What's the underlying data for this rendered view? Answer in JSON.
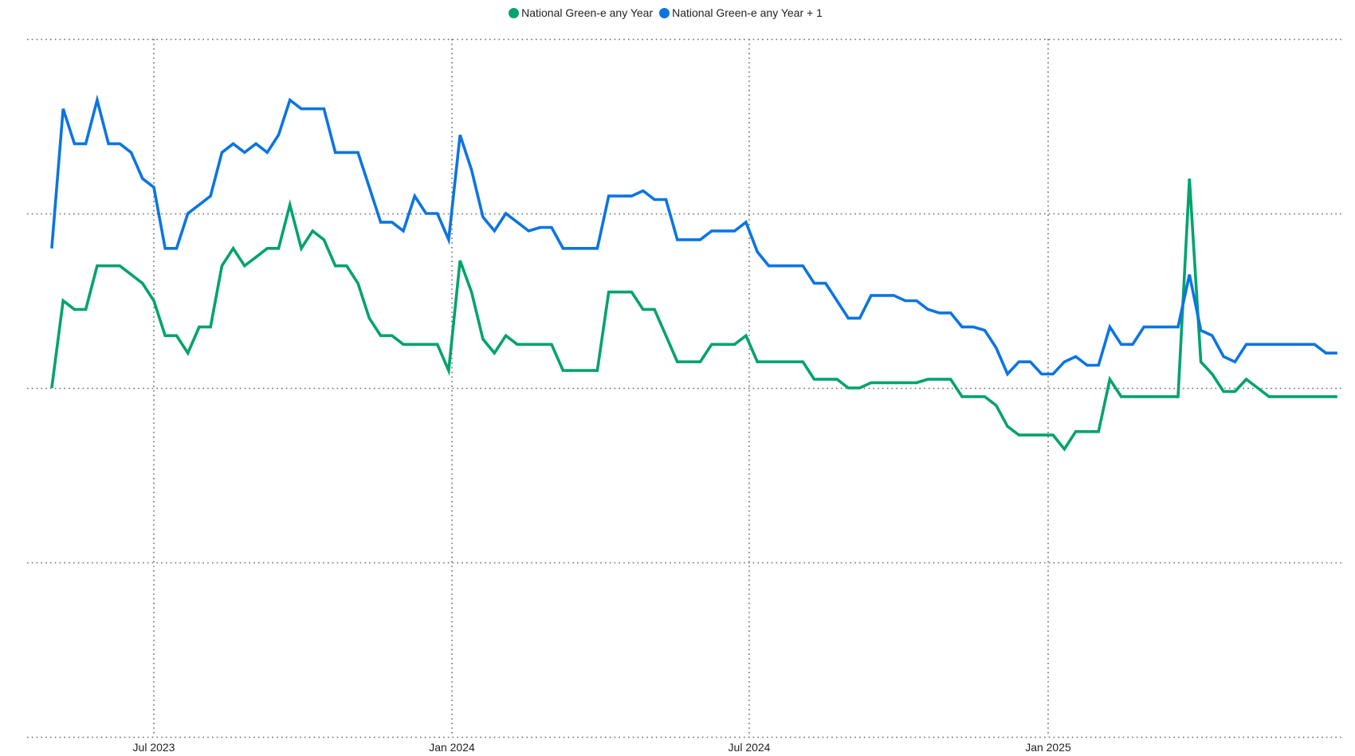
{
  "chart_data": {
    "type": "line",
    "title": "",
    "xlabel": "",
    "ylabel": "",
    "grid": true,
    "legend_position": "top-center",
    "x_ticks": [
      "Jul 2023",
      "Jan 2024",
      "Jul 2024",
      "Jan 2025"
    ],
    "x_tick_dates": [
      "2023-07-01",
      "2024-01-01",
      "2024-07-01",
      "2025-01-01"
    ],
    "x_range": [
      "2023-04-15",
      "2025-05-23"
    ],
    "y_gridlines": [
      0,
      1,
      2,
      3,
      4
    ],
    "y_range": [
      0,
      4
    ],
    "series": [
      {
        "name": "National Green-e any Year",
        "color": "#00A36C",
        "points": [
          [
            "2023-04-29",
            2.0
          ],
          [
            "2023-05-06",
            2.5
          ],
          [
            "2023-05-13",
            2.45
          ],
          [
            "2023-05-20",
            2.45
          ],
          [
            "2023-05-27",
            2.7
          ],
          [
            "2023-06-03",
            2.7
          ],
          [
            "2023-06-10",
            2.7
          ],
          [
            "2023-06-17",
            2.65
          ],
          [
            "2023-06-24",
            2.6
          ],
          [
            "2023-07-01",
            2.5
          ],
          [
            "2023-07-08",
            2.3
          ],
          [
            "2023-07-15",
            2.3
          ],
          [
            "2023-07-22",
            2.2
          ],
          [
            "2023-07-29",
            2.35
          ],
          [
            "2023-08-05",
            2.35
          ],
          [
            "2023-08-12",
            2.7
          ],
          [
            "2023-08-19",
            2.8
          ],
          [
            "2023-08-26",
            2.7
          ],
          [
            "2023-09-02",
            2.75
          ],
          [
            "2023-09-09",
            2.8
          ],
          [
            "2023-09-16",
            2.8
          ],
          [
            "2023-09-23",
            3.05
          ],
          [
            "2023-09-30",
            2.8
          ],
          [
            "2023-10-07",
            2.9
          ],
          [
            "2023-10-14",
            2.85
          ],
          [
            "2023-10-21",
            2.7
          ],
          [
            "2023-10-28",
            2.7
          ],
          [
            "2023-11-04",
            2.6
          ],
          [
            "2023-11-11",
            2.4
          ],
          [
            "2023-11-18",
            2.3
          ],
          [
            "2023-11-25",
            2.3
          ],
          [
            "2023-12-02",
            2.25
          ],
          [
            "2023-12-09",
            2.25
          ],
          [
            "2023-12-16",
            2.25
          ],
          [
            "2023-12-23",
            2.25
          ],
          [
            "2023-12-30",
            2.1
          ],
          [
            "2024-01-06",
            2.73
          ],
          [
            "2024-01-13",
            2.55
          ],
          [
            "2024-01-20",
            2.28
          ],
          [
            "2024-01-27",
            2.2
          ],
          [
            "2024-02-03",
            2.3
          ],
          [
            "2024-02-10",
            2.25
          ],
          [
            "2024-02-17",
            2.25
          ],
          [
            "2024-02-24",
            2.25
          ],
          [
            "2024-03-02",
            2.25
          ],
          [
            "2024-03-09",
            2.1
          ],
          [
            "2024-03-16",
            2.1
          ],
          [
            "2024-03-23",
            2.1
          ],
          [
            "2024-03-30",
            2.1
          ],
          [
            "2024-04-06",
            2.55
          ],
          [
            "2024-04-13",
            2.55
          ],
          [
            "2024-04-20",
            2.55
          ],
          [
            "2024-04-27",
            2.45
          ],
          [
            "2024-05-04",
            2.45
          ],
          [
            "2024-05-11",
            2.3
          ],
          [
            "2024-05-18",
            2.15
          ],
          [
            "2024-05-25",
            2.15
          ],
          [
            "2024-06-01",
            2.15
          ],
          [
            "2024-06-08",
            2.25
          ],
          [
            "2024-06-15",
            2.25
          ],
          [
            "2024-06-22",
            2.25
          ],
          [
            "2024-06-29",
            2.3
          ],
          [
            "2024-07-06",
            2.15
          ],
          [
            "2024-07-13",
            2.15
          ],
          [
            "2024-07-20",
            2.15
          ],
          [
            "2024-07-27",
            2.15
          ],
          [
            "2024-08-03",
            2.15
          ],
          [
            "2024-08-10",
            2.05
          ],
          [
            "2024-08-17",
            2.05
          ],
          [
            "2024-08-24",
            2.05
          ],
          [
            "2024-08-31",
            2.0
          ],
          [
            "2024-09-07",
            2.0
          ],
          [
            "2024-09-14",
            2.03
          ],
          [
            "2024-09-21",
            2.03
          ],
          [
            "2024-09-28",
            2.03
          ],
          [
            "2024-10-05",
            2.03
          ],
          [
            "2024-10-12",
            2.03
          ],
          [
            "2024-10-19",
            2.05
          ],
          [
            "2024-10-26",
            2.05
          ],
          [
            "2024-11-02",
            2.05
          ],
          [
            "2024-11-09",
            1.95
          ],
          [
            "2024-11-16",
            1.95
          ],
          [
            "2024-11-23",
            1.95
          ],
          [
            "2024-11-30",
            1.9
          ],
          [
            "2024-12-07",
            1.78
          ],
          [
            "2024-12-14",
            1.73
          ],
          [
            "2024-12-21",
            1.73
          ],
          [
            "2024-12-28",
            1.73
          ],
          [
            "2025-01-04",
            1.73
          ],
          [
            "2025-01-11",
            1.65
          ],
          [
            "2025-01-18",
            1.75
          ],
          [
            "2025-01-25",
            1.75
          ],
          [
            "2025-02-01",
            1.75
          ],
          [
            "2025-02-08",
            2.05
          ],
          [
            "2025-02-15",
            1.95
          ],
          [
            "2025-02-22",
            1.95
          ],
          [
            "2025-03-01",
            1.95
          ],
          [
            "2025-03-08",
            1.95
          ],
          [
            "2025-03-15",
            1.95
          ],
          [
            "2025-03-22",
            1.95
          ],
          [
            "2025-03-29",
            3.2
          ],
          [
            "2025-04-05",
            2.15
          ],
          [
            "2025-04-12",
            2.08
          ],
          [
            "2025-04-19",
            1.98
          ],
          [
            "2025-04-26",
            1.98
          ],
          [
            "2025-05-03",
            2.05
          ],
          [
            "2025-05-10",
            2.0
          ],
          [
            "2025-05-17",
            1.95
          ],
          [
            "2025-05-24",
            1.95
          ],
          [
            "2025-05-31",
            1.95
          ],
          [
            "2025-06-07",
            1.95
          ],
          [
            "2025-06-14",
            1.95
          ],
          [
            "2025-06-21",
            1.95
          ],
          [
            "2025-06-28",
            1.95
          ]
        ]
      },
      {
        "name": "National Green-e any Year + 1",
        "color": "#0B75E2",
        "points": [
          [
            "2023-04-29",
            2.8
          ],
          [
            "2023-05-06",
            3.6
          ],
          [
            "2023-05-13",
            3.4
          ],
          [
            "2023-05-20",
            3.4
          ],
          [
            "2023-05-27",
            3.65
          ],
          [
            "2023-06-03",
            3.4
          ],
          [
            "2023-06-10",
            3.4
          ],
          [
            "2023-06-17",
            3.35
          ],
          [
            "2023-06-24",
            3.2
          ],
          [
            "2023-07-01",
            3.15
          ],
          [
            "2023-07-08",
            2.8
          ],
          [
            "2023-07-15",
            2.8
          ],
          [
            "2023-07-22",
            3.0
          ],
          [
            "2023-07-29",
            3.05
          ],
          [
            "2023-08-05",
            3.1
          ],
          [
            "2023-08-12",
            3.35
          ],
          [
            "2023-08-19",
            3.4
          ],
          [
            "2023-08-26",
            3.35
          ],
          [
            "2023-09-02",
            3.4
          ],
          [
            "2023-09-09",
            3.35
          ],
          [
            "2023-09-16",
            3.45
          ],
          [
            "2023-09-23",
            3.65
          ],
          [
            "2023-09-30",
            3.6
          ],
          [
            "2023-10-07",
            3.6
          ],
          [
            "2023-10-14",
            3.6
          ],
          [
            "2023-10-21",
            3.35
          ],
          [
            "2023-10-28",
            3.35
          ],
          [
            "2023-11-04",
            3.35
          ],
          [
            "2023-11-11",
            3.15
          ],
          [
            "2023-11-18",
            2.95
          ],
          [
            "2023-11-25",
            2.95
          ],
          [
            "2023-12-02",
            2.9
          ],
          [
            "2023-12-09",
            3.1
          ],
          [
            "2023-12-16",
            3.0
          ],
          [
            "2023-12-23",
            3.0
          ],
          [
            "2023-12-30",
            2.85
          ],
          [
            "2024-01-06",
            3.45
          ],
          [
            "2024-01-13",
            3.25
          ],
          [
            "2024-01-20",
            2.98
          ],
          [
            "2024-01-27",
            2.9
          ],
          [
            "2024-02-03",
            3.0
          ],
          [
            "2024-02-10",
            2.95
          ],
          [
            "2024-02-17",
            2.9
          ],
          [
            "2024-02-24",
            2.92
          ],
          [
            "2024-03-02",
            2.92
          ],
          [
            "2024-03-09",
            2.8
          ],
          [
            "2024-03-16",
            2.8
          ],
          [
            "2024-03-23",
            2.8
          ],
          [
            "2024-03-30",
            2.8
          ],
          [
            "2024-04-06",
            3.1
          ],
          [
            "2024-04-13",
            3.1
          ],
          [
            "2024-04-20",
            3.1
          ],
          [
            "2024-04-27",
            3.13
          ],
          [
            "2024-05-04",
            3.08
          ],
          [
            "2024-05-11",
            3.08
          ],
          [
            "2024-05-18",
            2.85
          ],
          [
            "2024-05-25",
            2.85
          ],
          [
            "2024-06-01",
            2.85
          ],
          [
            "2024-06-08",
            2.9
          ],
          [
            "2024-06-15",
            2.9
          ],
          [
            "2024-06-22",
            2.9
          ],
          [
            "2024-06-29",
            2.95
          ],
          [
            "2024-07-06",
            2.78
          ],
          [
            "2024-07-13",
            2.7
          ],
          [
            "2024-07-20",
            2.7
          ],
          [
            "2024-07-27",
            2.7
          ],
          [
            "2024-08-03",
            2.7
          ],
          [
            "2024-08-10",
            2.6
          ],
          [
            "2024-08-17",
            2.6
          ],
          [
            "2024-08-24",
            2.5
          ],
          [
            "2024-08-31",
            2.4
          ],
          [
            "2024-09-07",
            2.4
          ],
          [
            "2024-09-14",
            2.53
          ],
          [
            "2024-09-21",
            2.53
          ],
          [
            "2024-09-28",
            2.53
          ],
          [
            "2024-10-05",
            2.5
          ],
          [
            "2024-10-12",
            2.5
          ],
          [
            "2024-10-19",
            2.45
          ],
          [
            "2024-10-26",
            2.43
          ],
          [
            "2024-11-02",
            2.43
          ],
          [
            "2024-11-09",
            2.35
          ],
          [
            "2024-11-16",
            2.35
          ],
          [
            "2024-11-23",
            2.33
          ],
          [
            "2024-11-30",
            2.23
          ],
          [
            "2024-12-07",
            2.08
          ],
          [
            "2024-12-14",
            2.15
          ],
          [
            "2024-12-21",
            2.15
          ],
          [
            "2024-12-28",
            2.08
          ],
          [
            "2025-01-04",
            2.08
          ],
          [
            "2025-01-11",
            2.15
          ],
          [
            "2025-01-18",
            2.18
          ],
          [
            "2025-01-25",
            2.13
          ],
          [
            "2025-02-01",
            2.13
          ],
          [
            "2025-02-08",
            2.35
          ],
          [
            "2025-02-15",
            2.25
          ],
          [
            "2025-02-22",
            2.25
          ],
          [
            "2025-03-01",
            2.35
          ],
          [
            "2025-03-08",
            2.35
          ],
          [
            "2025-03-15",
            2.35
          ],
          [
            "2025-03-22",
            2.35
          ],
          [
            "2025-03-29",
            2.65
          ],
          [
            "2025-04-05",
            2.33
          ],
          [
            "2025-04-12",
            2.3
          ],
          [
            "2025-04-19",
            2.18
          ],
          [
            "2025-04-26",
            2.15
          ],
          [
            "2025-05-03",
            2.25
          ],
          [
            "2025-05-10",
            2.25
          ],
          [
            "2025-05-17",
            2.25
          ],
          [
            "2025-05-24",
            2.25
          ],
          [
            "2025-05-31",
            2.25
          ],
          [
            "2025-06-07",
            2.25
          ],
          [
            "2025-06-14",
            2.25
          ],
          [
            "2025-06-21",
            2.2
          ],
          [
            "2025-06-28",
            2.2
          ]
        ]
      }
    ]
  }
}
